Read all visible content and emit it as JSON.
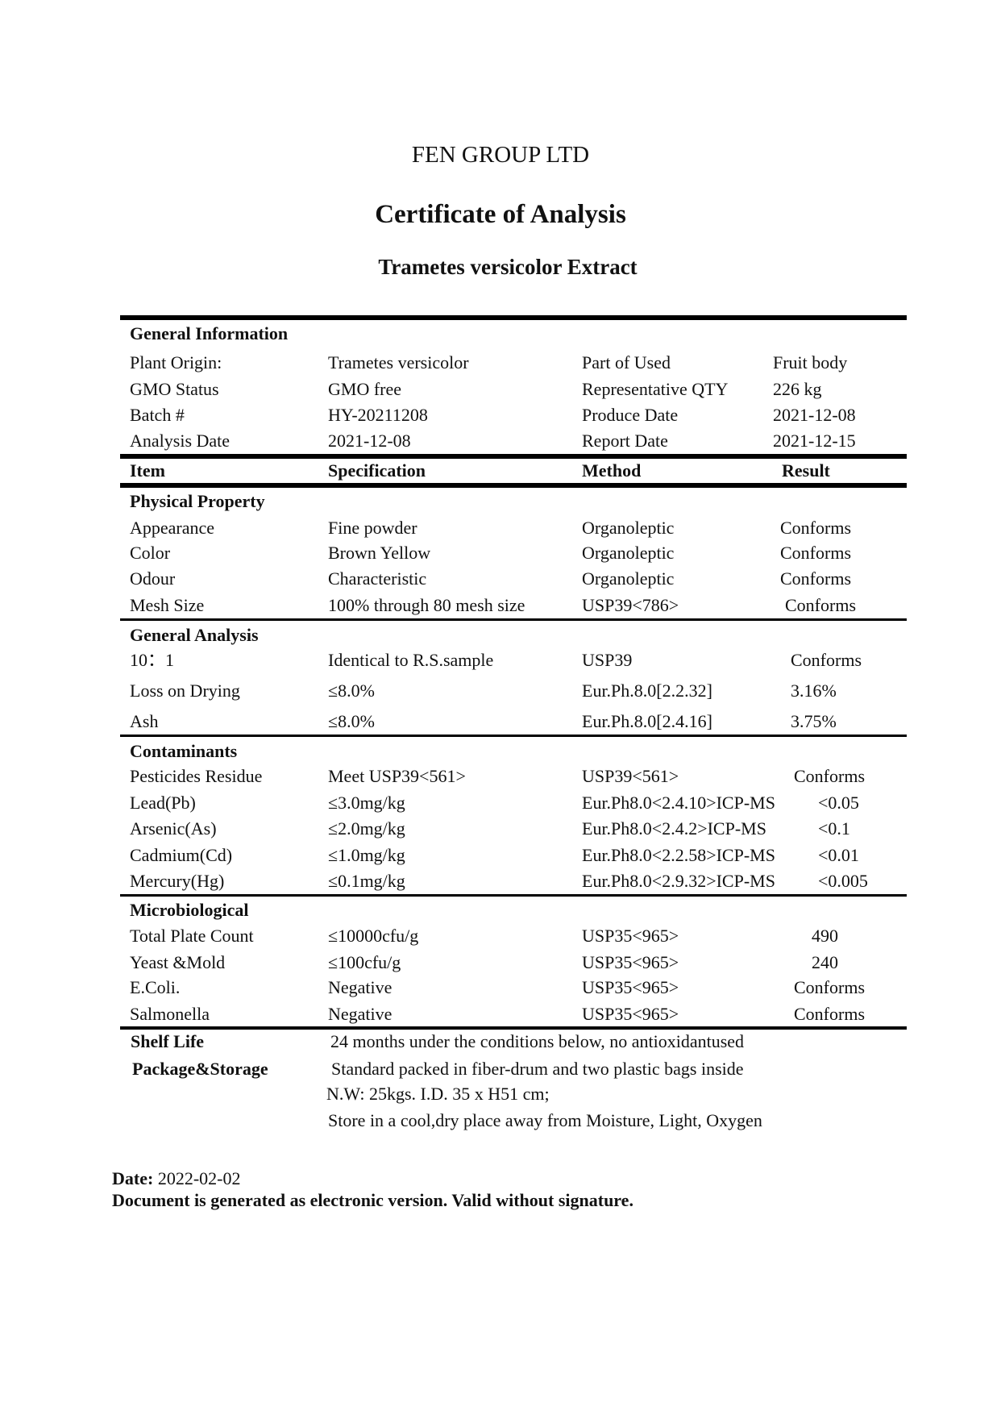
{
  "header": {
    "company": "FEN GROUP LTD",
    "title": "Certificate of Analysis",
    "product": "Trametes versicolor Extract"
  },
  "general_information": {
    "heading": "General Information",
    "rows": [
      [
        "Plant Origin:",
        "Trametes versicolor",
        "Part of Used",
        "Fruit body"
      ],
      [
        "GMO Status",
        "GMO free",
        "Representative QTY",
        "226 kg"
      ],
      [
        "Batch #",
        "HY-20211208",
        "Produce Date",
        "2021-12-08"
      ],
      [
        "Analysis Date",
        "2021-12-08",
        "Report Date",
        "2021-12-15"
      ]
    ]
  },
  "columns": [
    "Item",
    "Specification",
    "Method",
    "Result"
  ],
  "sections": [
    {
      "heading": "Physical Property",
      "rows": [
        [
          "Appearance",
          "Fine powder",
          "Organoleptic",
          "Conforms"
        ],
        [
          "Color",
          "Brown Yellow",
          "Organoleptic",
          "Conforms"
        ],
        [
          "Odour",
          "Characteristic",
          "Organoleptic",
          "Conforms"
        ],
        [
          "Mesh Size",
          "100% through 80 mesh size",
          "USP39<786>",
          "Conforms"
        ]
      ]
    },
    {
      "heading": "General Analysis",
      "rows": [
        [
          "10：1",
          "Identical to R.S.sample",
          "USP39",
          "Conforms"
        ],
        [
          "Loss on Drying",
          "≤8.0%",
          "Eur.Ph.8.0[2.2.32]",
          "3.16%"
        ],
        [
          "Ash",
          "≤8.0%",
          "Eur.Ph.8.0[2.4.16]",
          "3.75%"
        ]
      ]
    },
    {
      "heading": "Contaminants",
      "rows": [
        [
          "Pesticides Residue",
          "Meet USP39<561>",
          "USP39<561>",
          "Conforms"
        ],
        [
          "Lead(Pb)",
          "≤3.0mg/kg",
          "Eur.Ph8.0<2.4.10>ICP-MS",
          "<0.05"
        ],
        [
          "Arsenic(As)",
          "≤2.0mg/kg",
          "Eur.Ph8.0<2.4.2>ICP-MS",
          "<0.1"
        ],
        [
          "Cadmium(Cd)",
          "≤1.0mg/kg",
          "Eur.Ph8.0<2.2.58>ICP-MS",
          "<0.01"
        ],
        [
          "Mercury(Hg)",
          "≤0.1mg/kg",
          "Eur.Ph8.0<2.9.32>ICP-MS",
          "<0.005"
        ]
      ]
    },
    {
      "heading": "Microbiological",
      "rows": [
        [
          "Total Plate Count",
          "≤10000cfu/g",
          "USP35<965>",
          "490"
        ],
        [
          "Yeast &Mold",
          "≤100cfu/g",
          "USP35<965>",
          "240"
        ],
        [
          "E.Coli.",
          "Negative",
          "USP35<965>",
          "Conforms"
        ],
        [
          "Salmonella",
          "Negative",
          "USP35<965>",
          "Conforms"
        ]
      ]
    }
  ],
  "shelf_life": {
    "label": "Shelf Life",
    "value": "24 months under the conditions below, no antioxidantused"
  },
  "package": {
    "label": "Package&Storage",
    "lines": [
      "Standard packed in fiber-drum and two plastic bags inside",
      "N.W: 25kgs. I.D. 35 x H51 cm;",
      "Store in a cool,dry place away from Moisture, Light, Oxygen"
    ]
  },
  "footer": {
    "date_label": "Date:",
    "date_value": "2022-02-02",
    "note": "Document is generated as electronic version. Valid without signature."
  }
}
